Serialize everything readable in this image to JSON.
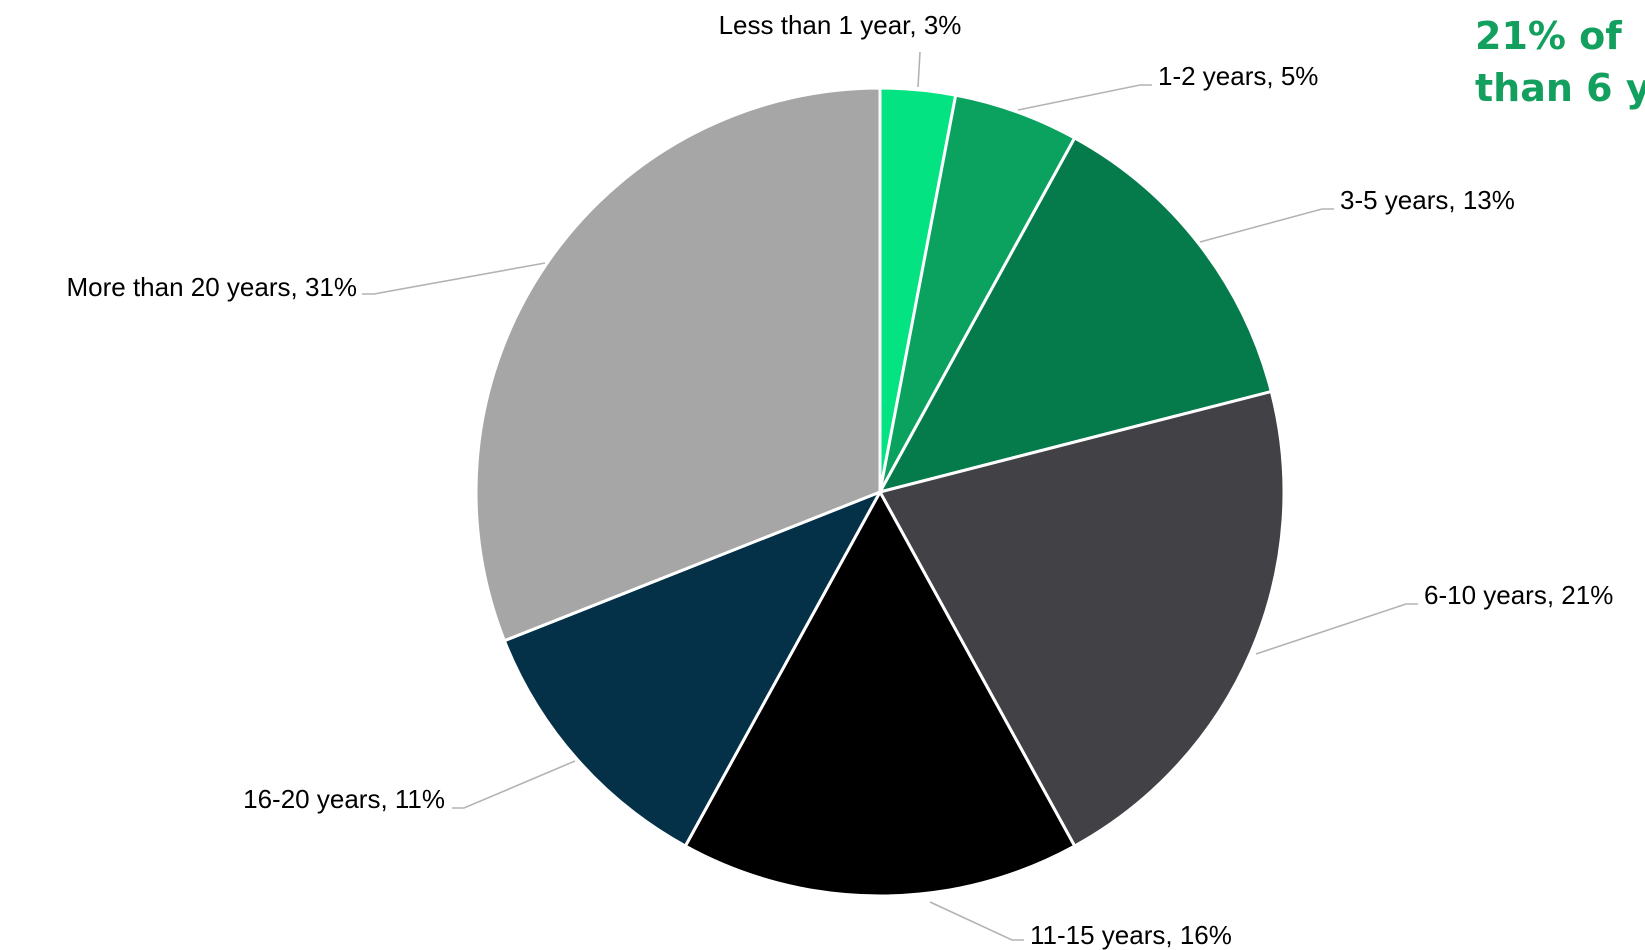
{
  "headline": {
    "line1": "21% of",
    "line2": "than 6 y",
    "color": "#13a05f"
  },
  "chart_data": {
    "type": "pie",
    "start": "top",
    "direction": "clockwise",
    "slices": [
      {
        "label": "Less than 1 year, 3%",
        "category": "Less than 1 year",
        "value": 3,
        "color": "#04e381"
      },
      {
        "label": "1-2 years, 5%",
        "category": "1-2 years",
        "value": 5,
        "color": "#0aa25e"
      },
      {
        "label": "3-5 years, 13%",
        "category": "3-5 years",
        "value": 13,
        "color": "#057a4a"
      },
      {
        "label": "6-10 years, 21%",
        "category": "6-10 years",
        "value": 21,
        "color": "#424146"
      },
      {
        "label": "11-15 years, 16%",
        "category": "11-15 years",
        "value": 16,
        "color": "#000000"
      },
      {
        "label": "16-20 years, 11%",
        "category": "16-20 years",
        "value": 11,
        "color": "#043147"
      },
      {
        "label": "More than 20 years, 31%",
        "category": "More than 20 years",
        "value": 31,
        "color": "#a6a6a6"
      }
    ]
  }
}
